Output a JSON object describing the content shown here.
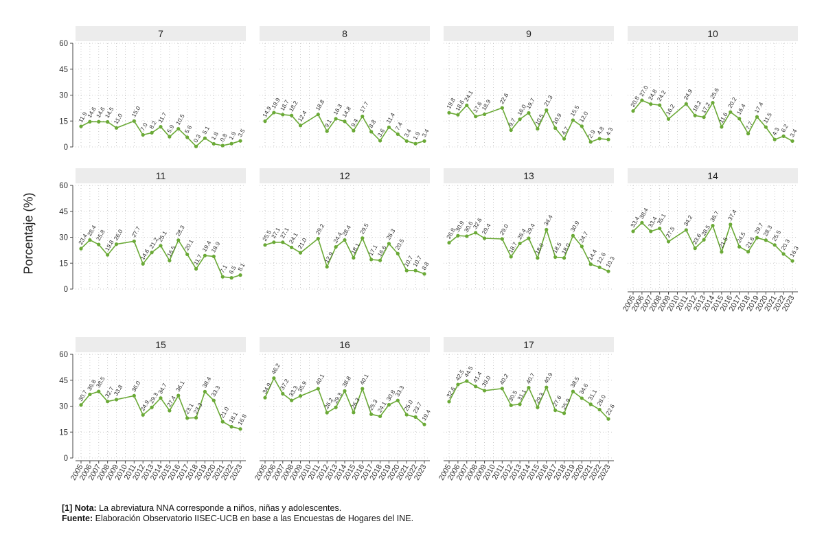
{
  "ylabel": "Porcentaje (%)",
  "footnote": {
    "nota_label": "[1] Nota:",
    "nota_text": " La abreviatura NNA corresponde a niños, niñas y adolescentes.",
    "fuente_label": "Fuente:",
    "fuente_text": " Elaboración Observatorio IISEC-UCB en base a las Encuestas de Hogares del INE."
  },
  "colors": {
    "line": "#6aa936",
    "strip": "#ececec",
    "grid": "#bbbbbb",
    "axis": "#444444"
  },
  "chart_data": {
    "type": "line",
    "facet_layout": "4 columns x 3 rows",
    "ylabel": "Porcentaje (%)",
    "ylim": [
      0,
      60
    ],
    "yticks": [
      0,
      15,
      30,
      45,
      60
    ],
    "x": [
      2005,
      2006,
      2007,
      2008,
      2009,
      2011,
      2012,
      2013,
      2014,
      2015,
      2016,
      2017,
      2018,
      2019,
      2020,
      2021,
      2022,
      2023
    ],
    "xticks": [
      2005,
      2006,
      2007,
      2008,
      2009,
      2010,
      2011,
      2012,
      2013,
      2014,
      2015,
      2016,
      2017,
      2018,
      2019,
      2020,
      2021,
      2022,
      2023
    ],
    "grid": true,
    "panels": [
      {
        "title": "7",
        "values": [
          11.9,
          14.6,
          14.6,
          14.5,
          11.0,
          15.0,
          7.0,
          8.2,
          11.7,
          5.9,
          10.5,
          5.6,
          0.3,
          5.1,
          1.8,
          0.8,
          1.9,
          3.5
        ]
      },
      {
        "title": "8",
        "values": [
          14.9,
          19.9,
          18.7,
          18.2,
          12.4,
          18.8,
          9.1,
          16.3,
          14.8,
          9.4,
          17.7,
          8.8,
          3.6,
          11.4,
          7.4,
          3.4,
          1.9,
          3.4
        ]
      },
      {
        "title": "9",
        "values": [
          19.8,
          18.6,
          24.1,
          17.6,
          18.9,
          22.6,
          9.7,
          16.0,
          19.7,
          10.5,
          21.3,
          10.9,
          4.7,
          15.5,
          12.0,
          2.9,
          4.8,
          4.3
        ]
      },
      {
        "title": "10",
        "values": [
          20.8,
          27.0,
          24.8,
          24.2,
          16.2,
          24.9,
          18.2,
          17.2,
          25.6,
          11.6,
          20.2,
          16.4,
          7.7,
          17.4,
          11.5,
          4.3,
          6.2,
          3.4
        ]
      },
      {
        "title": "11",
        "values": [
          23.4,
          28.4,
          25.8,
          19.8,
          26.0,
          27.7,
          14.6,
          21.2,
          25.1,
          16.5,
          28.3,
          20.1,
          11.7,
          19.4,
          18.9,
          7.1,
          6.5,
          8.1
        ]
      },
      {
        "title": "12",
        "values": [
          25.5,
          27.1,
          27.1,
          24.1,
          21.0,
          29.2,
          12.9,
          24.4,
          28.4,
          18.1,
          29.5,
          17.1,
          16.6,
          26.3,
          20.5,
          10.7,
          10.7,
          8.8
        ]
      },
      {
        "title": "13",
        "values": [
          26.8,
          30.9,
          30.6,
          32.6,
          29.4,
          29.0,
          18.7,
          26.4,
          29.4,
          18.0,
          34.4,
          18.5,
          18.0,
          30.9,
          24.7,
          14.4,
          12.6,
          10.3
        ]
      },
      {
        "title": "14",
        "values": [
          33.4,
          38.4,
          33.4,
          35.1,
          27.5,
          34.2,
          23.6,
          28.5,
          36.7,
          21.5,
          37.4,
          24.5,
          21.6,
          29.7,
          28.3,
          25.5,
          20.3,
          16.3
        ]
      },
      {
        "title": "15",
        "values": [
          30.7,
          36.8,
          38.5,
          32.7,
          33.8,
          36.0,
          24.9,
          29.3,
          34.7,
          27.4,
          36.1,
          23.1,
          23.3,
          38.4,
          33.3,
          21.0,
          18.1,
          16.8
        ]
      },
      {
        "title": "16",
        "values": [
          34.9,
          46.2,
          37.2,
          33.3,
          35.9,
          40.1,
          26.2,
          29.3,
          38.8,
          26.3,
          40.1,
          25.3,
          24.1,
          30.8,
          33.3,
          25.0,
          23.7,
          19.4
        ]
      },
      {
        "title": "17",
        "values": [
          32.6,
          42.5,
          44.5,
          41.4,
          39.0,
          40.2,
          30.5,
          31.1,
          40.7,
          29.3,
          40.9,
          27.6,
          25.9,
          38.5,
          34.6,
          31.1,
          28.0,
          22.6
        ]
      }
    ]
  }
}
